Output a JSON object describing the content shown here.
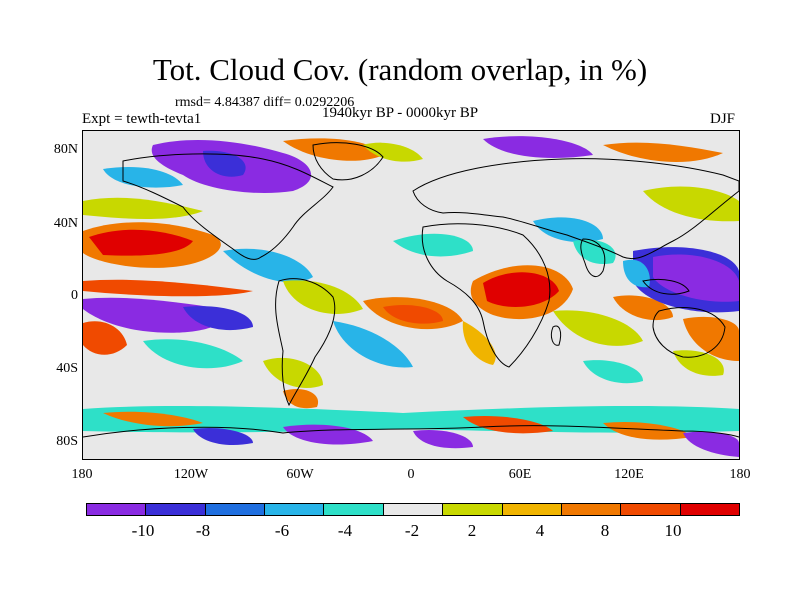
{
  "header": {
    "title": "Tot. Cloud Cov. (random overlap, in %)",
    "stats": "rmsd= 4.84387 diff= 0.0292206",
    "experiment": "Expt = tewth-tevta1",
    "period": "1940kyr BP - 0000kyr BP",
    "season": "DJF"
  },
  "axes": {
    "lat_ticks": [
      "80N",
      "40N",
      "0",
      "40S",
      "80S"
    ],
    "lon_ticks": [
      "180",
      "120W",
      "60W",
      "0",
      "60E",
      "120E",
      "180"
    ]
  },
  "colorbar": {
    "labels": [
      "-10",
      "-8",
      "-6",
      "-4",
      "-2",
      "2",
      "4",
      "8",
      "10"
    ],
    "colors": [
      "#8a2be2",
      "#3b2fd8",
      "#1f6fe0",
      "#28b4e8",
      "#2ee0c8",
      "#e8e8e8",
      "#c8d800",
      "#f0b400",
      "#f07800",
      "#f04a00",
      "#e00000"
    ]
  },
  "map": {
    "projection": "cylindrical equidistant",
    "lon_range": [
      -180,
      180
    ],
    "lat_range": [
      -90,
      90
    ]
  }
}
